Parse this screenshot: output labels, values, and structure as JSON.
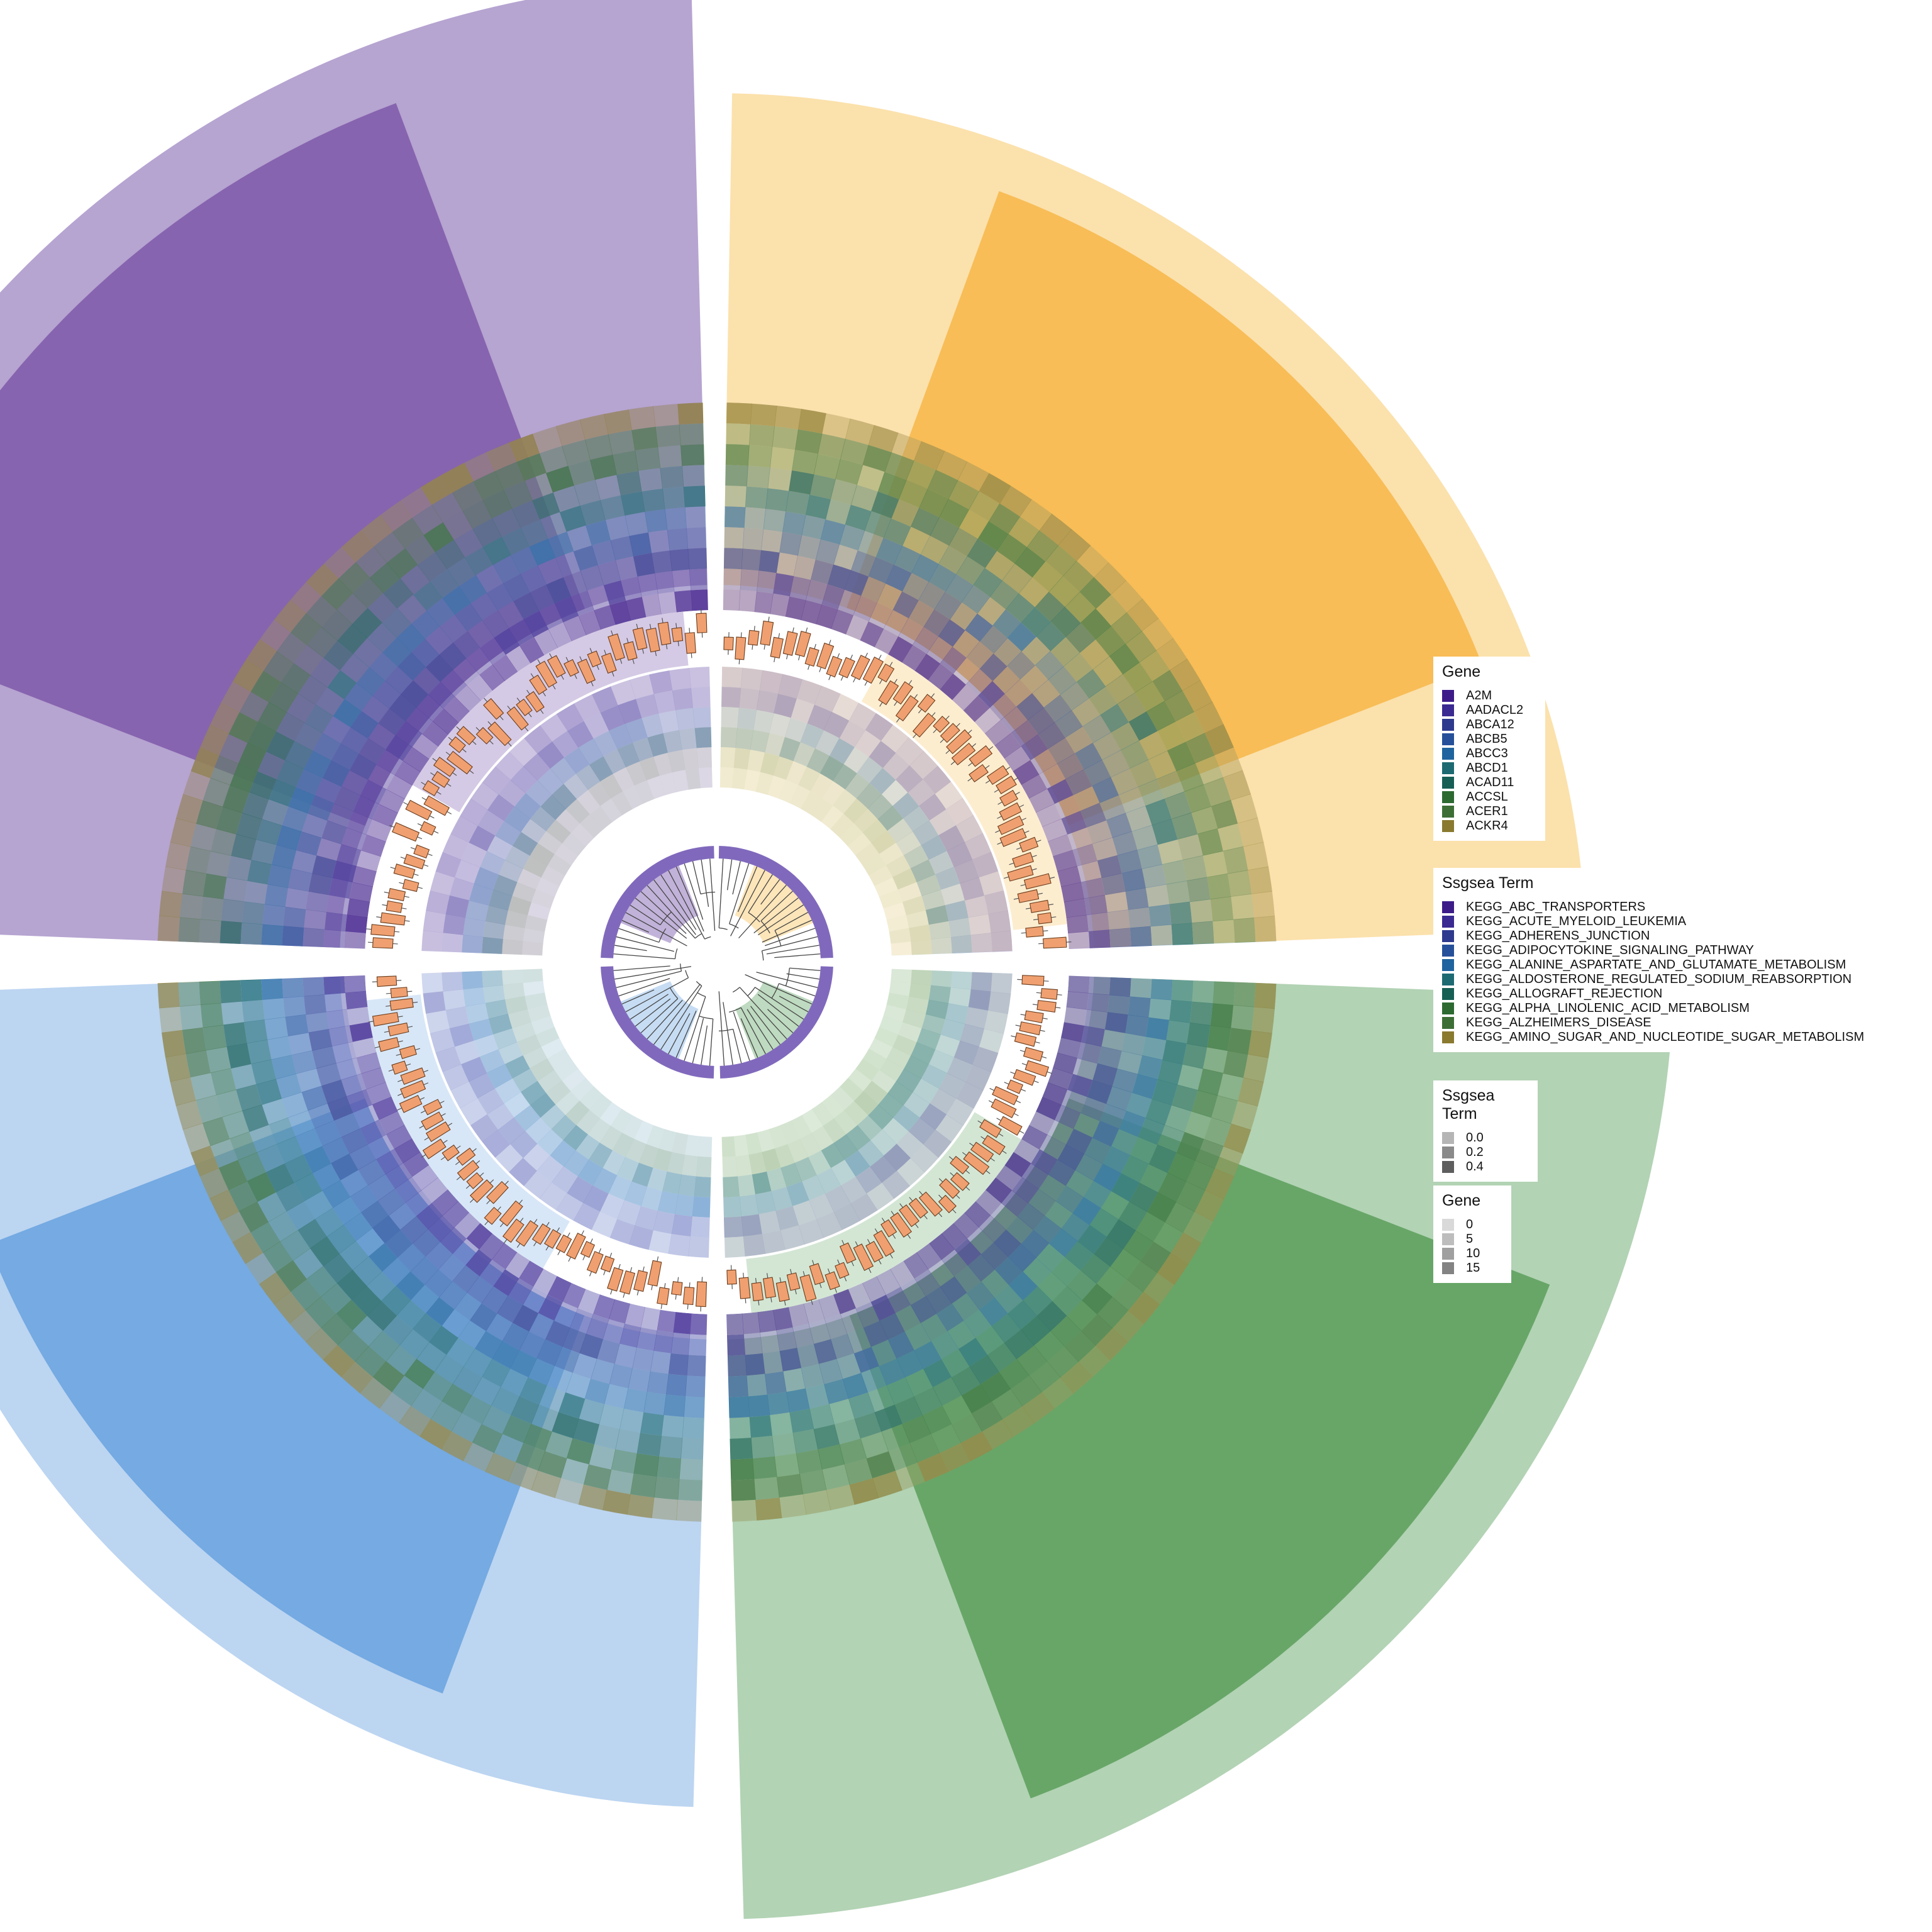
{
  "chart_data": {
    "type": "circular-heatmap",
    "groups": [
      {
        "color": "#6a3d9a",
        "light": "#b29fcf"
      },
      {
        "color": "#f5a623",
        "light": "#fbdfa8"
      },
      {
        "color": "#3a8a3a",
        "light": "#aed1b0"
      },
      {
        "color": "#4a90d9",
        "light": "#b8d3f0"
      }
    ],
    "sector_values": [
      55,
      41,
      52,
      38
    ],
    "sector_dark_values": [
      47,
      35,
      44,
      30
    ],
    "legends": {
      "gene": {
        "title": "Gene",
        "items": [
          {
            "label": "A2M",
            "color": "#3d1c8a"
          },
          {
            "label": "AADACL2",
            "color": "#3a2a92"
          },
          {
            "label": "ABCA12",
            "color": "#2e3a8e"
          },
          {
            "label": "ABCB5",
            "color": "#26509a"
          },
          {
            "label": "ABCC3",
            "color": "#1f649e"
          },
          {
            "label": "ABCD1",
            "color": "#1d6a72"
          },
          {
            "label": "ACAD11",
            "color": "#175f55"
          },
          {
            "label": "ACCSL",
            "color": "#2d6a32"
          },
          {
            "label": "ACER1",
            "color": "#3d6e36"
          },
          {
            "label": "ACKR4",
            "color": "#8a7a30"
          }
        ]
      },
      "ssgsea_term": {
        "title": "Ssgsea Term",
        "items": [
          {
            "label": "KEGG_ABC_TRANSPORTERS",
            "color": "#3d1c8a"
          },
          {
            "label": "KEGG_ACUTE_MYELOID_LEUKEMIA",
            "color": "#3a2a92"
          },
          {
            "label": "KEGG_ADHERENS_JUNCTION",
            "color": "#2e3a8e"
          },
          {
            "label": "KEGG_ADIPOCYTOKINE_SIGNALING_PATHWAY",
            "color": "#26509a"
          },
          {
            "label": "KEGG_ALANINE_ASPARTATE_AND_GLUTAMATE_METABOLISM",
            "color": "#1f649e"
          },
          {
            "label": "KEGG_ALDOSTERONE_REGULATED_SODIUM_REABSORPTION",
            "color": "#1d6a72"
          },
          {
            "label": "KEGG_ALLOGRAFT_REJECTION",
            "color": "#175f55"
          },
          {
            "label": "KEGG_ALPHA_LINOLENIC_ACID_METABOLISM",
            "color": "#2d6a32"
          },
          {
            "label": "KEGG_ALZHEIMERS_DISEASE",
            "color": "#3d6e36"
          },
          {
            "label": "KEGG_AMINO_SUGAR_AND_NUCLEOTIDE_SUGAR_METABOLISM",
            "color": "#8a7a30"
          }
        ]
      },
      "ssgsea_scale": {
        "title": "Ssgsea Term",
        "items": [
          {
            "label": "0.0",
            "color": "#b5b5b5"
          },
          {
            "label": "0.2",
            "color": "#8a8a8a"
          },
          {
            "label": "0.4",
            "color": "#5e5e5e"
          }
        ]
      },
      "gene_scale": {
        "title": "Gene",
        "items": [
          {
            "label": "0",
            "color": "#d9d9d9"
          },
          {
            "label": "5",
            "color": "#bdbdbd"
          },
          {
            "label": "10",
            "color": "#a0a0a0"
          },
          {
            "label": "15",
            "color": "#838383"
          }
        ]
      }
    }
  }
}
